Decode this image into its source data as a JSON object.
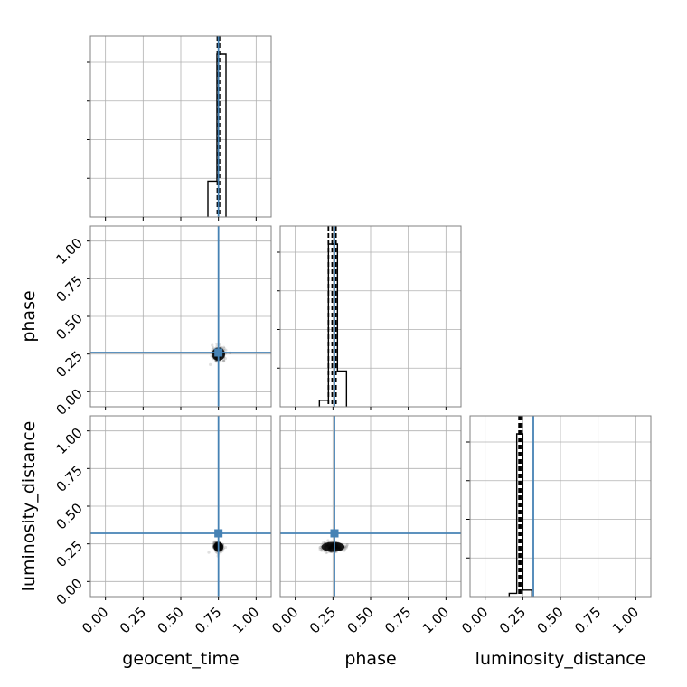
{
  "chart_data": {
    "type": "corner",
    "parameters": [
      "geocent_time",
      "phase",
      "luminosity_distance"
    ],
    "axis_labels": {
      "x": [
        "geocent_time",
        "phase",
        "luminosity_distance"
      ],
      "y": [
        "",
        "phase",
        "luminosity_distance"
      ]
    },
    "tick_labels": [
      "0.00",
      "0.25",
      "0.50",
      "0.75",
      "1.00"
    ],
    "tick_values": [
      0,
      0.25,
      0.5,
      0.75,
      1.0
    ],
    "range": [
      -0.1,
      1.1
    ],
    "truths": [
      0.75,
      0.26,
      0.32
    ],
    "grid": true,
    "colors": {
      "truth": "#4682b4",
      "hist": "#000000",
      "grid": "#b0b0b0",
      "frame": "#808080"
    },
    "histograms": [
      {
        "parameter": "geocent_time",
        "bins": [
          [
            0.68,
            0.74,
            0.22
          ],
          [
            0.74,
            0.8,
            1.0
          ]
        ],
        "quantiles": [
          0.743,
          0.75,
          0.757
        ]
      },
      {
        "parameter": "phase",
        "bins": [
          [
            0.16,
            0.22,
            0.04
          ],
          [
            0.22,
            0.28,
            1.0
          ],
          [
            0.28,
            0.34,
            0.22
          ]
        ],
        "quantiles": [
          0.22,
          0.245,
          0.27
        ]
      },
      {
        "parameter": "luminosity_distance",
        "bins": [
          [
            0.16,
            0.21,
            0.02
          ],
          [
            0.21,
            0.25,
            1.0
          ],
          [
            0.25,
            0.31,
            0.04
          ]
        ],
        "quantiles": [
          0.225,
          0.235,
          0.245
        ]
      }
    ],
    "scatter_2d": [
      {
        "x": "geocent_time",
        "y": "phase",
        "center": [
          0.75,
          0.25
        ],
        "spread": [
          0.02,
          0.02
        ]
      },
      {
        "x": "geocent_time",
        "y": "luminosity_distance",
        "center": [
          0.75,
          0.23
        ],
        "spread": [
          0.015,
          0.015
        ]
      },
      {
        "x": "phase",
        "y": "luminosity_distance",
        "center": [
          0.25,
          0.23
        ],
        "spread": [
          0.035,
          0.015
        ]
      }
    ]
  }
}
